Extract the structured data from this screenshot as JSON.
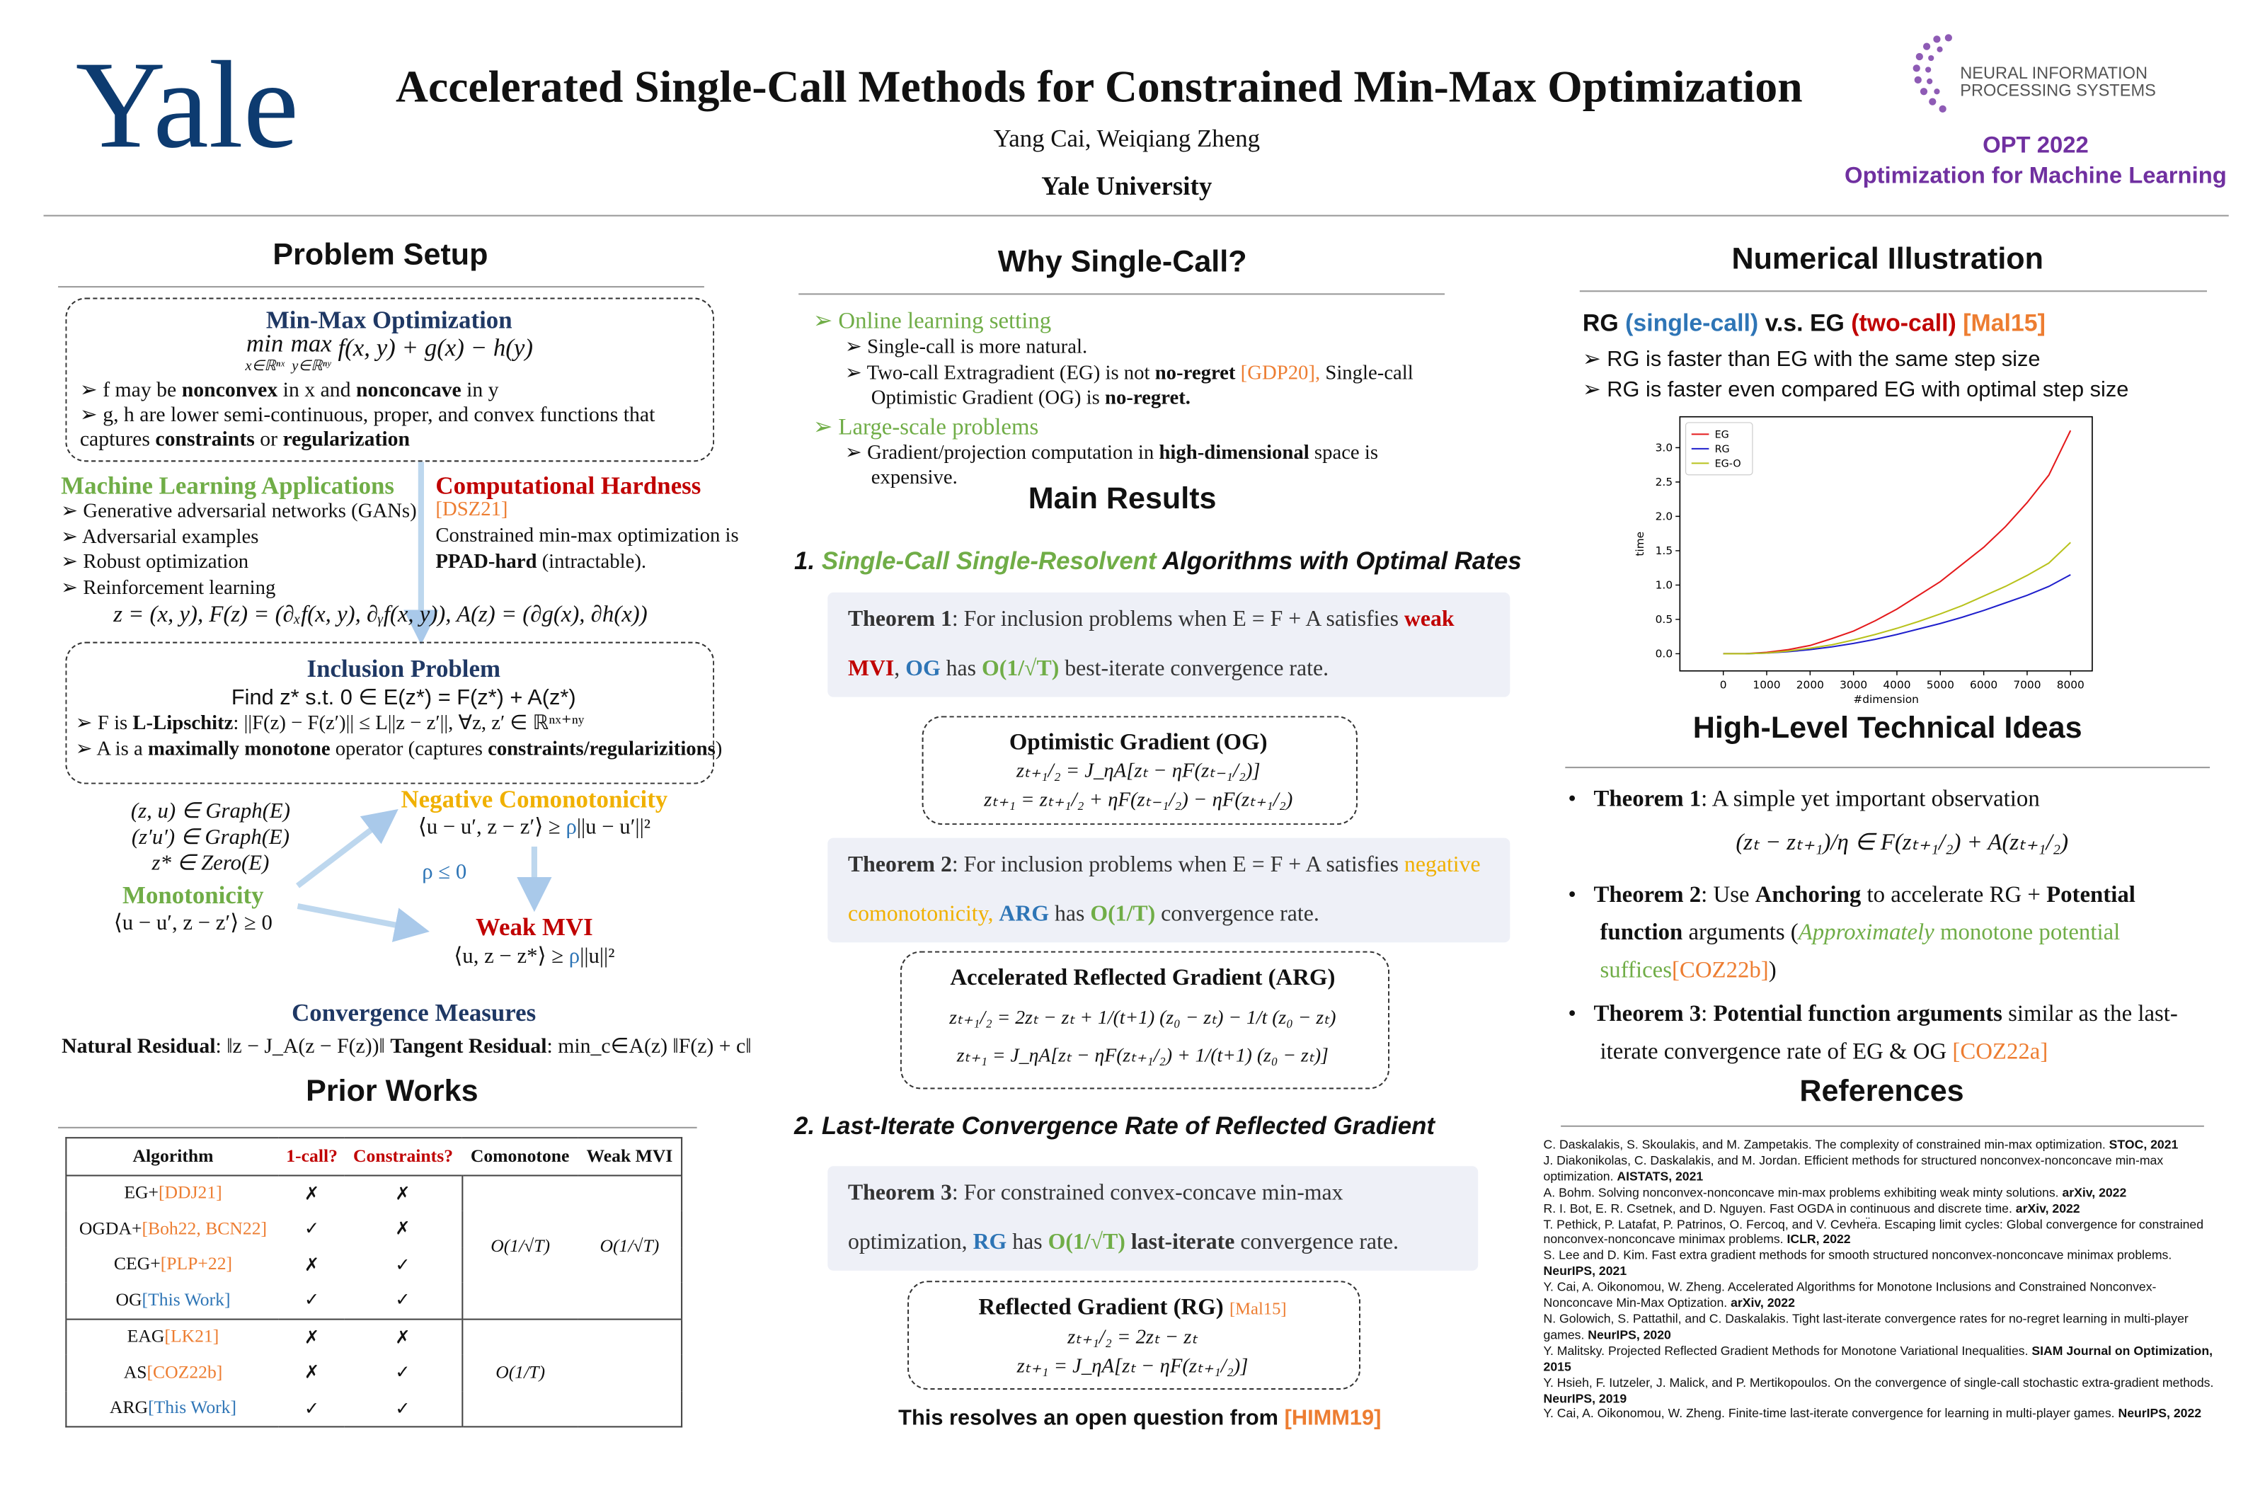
{
  "header": {
    "logo": "Yale",
    "title": "Accelerated Single-Call Methods for Constrained Min-Max Optimization",
    "authors": "Yang Cai, Weiqiang Zheng",
    "affiliation": "Yale University",
    "conference_logo": [
      "NEURAL INFORMATION",
      "PROCESSING SYSTEMS"
    ],
    "workshop": "OPT 2022",
    "workshop_name": "Optimization for Machine Learning"
  },
  "problem_setup": {
    "heading": "Problem Setup",
    "minmax": {
      "title": "Min-Max Optimization",
      "op1": "min",
      "sub1": "x∈ℝⁿˣ",
      "op2": "max",
      "sub2": "y∈ℝⁿʸ",
      "expr": "f(x, y) + g(x) − h(y)",
      "bullets": [
        [
          "f may be ",
          "nonconvex",
          " in x and ",
          "nonconcave",
          " in y"
        ],
        [
          "g, h are lower semi-continuous, proper, and convex functions that captures ",
          "constraints",
          " or ",
          "regularization"
        ]
      ]
    },
    "ml_apps": {
      "title": "Machine Learning Applications",
      "items": [
        "Generative adversarial networks (GANs)",
        "Adversarial examples",
        "Robust optimization",
        "Reinforcement learning"
      ]
    },
    "hardness": {
      "title": "Computational Hardness",
      "ref": "[DSZ21]",
      "text": [
        "Constrained min-max optimization is ",
        "PPAD-hard",
        " (intractable)."
      ]
    },
    "operator_def": "z = (x, y), F(z) = (∂ₓf(x, y), ∂ᵧf(x, y)), A(z) = (∂g(x), ∂h(x))",
    "inclusion": {
      "title": "Inclusion Problem",
      "statement": "Find z* s.t. 0 ∈ E(z*) = F(z*) + A(z*)",
      "bullets": [
        [
          "F is ",
          "L-Lipschitz",
          ": ||F(z) − F(z′)|| ≤ L||z − z′||, ∀z, z′ ∈ ℝⁿˣ⁺ⁿʸ"
        ],
        [
          "A is a ",
          "maximally monotone",
          " operator (captures ",
          "constraints/regularizitions",
          ")"
        ]
      ]
    },
    "conditions": {
      "graph": [
        "(z, u) ∈ Graph(E)",
        "(z′u′) ∈ Graph(E)",
        "z* ∈ Zero(E)"
      ],
      "monotonicity": {
        "title": "Monotonicity",
        "formula": "⟨u − u′, z − z′⟩ ≥ 0"
      },
      "negative_comonotonicity": {
        "title": "Negative Comonotonicity",
        "formula": [
          "⟨u − u′, z − z′⟩ ≥ ",
          "ρ",
          "||u − u′||²"
        ]
      },
      "rho_condition": "ρ ≤ 0",
      "weak_mvi": {
        "title": "Weak MVI",
        "formula": [
          "⟨u, z − z*⟩ ≥ ",
          "ρ",
          "||u||²"
        ]
      }
    },
    "convergence": {
      "title": "Convergence Measures",
      "text": [
        "Natural Residual",
        ": ‖z − J_A(z − F(z))‖ ",
        "Tangent Residual",
        ": min_c∈A(z) ‖F(z) + c‖"
      ]
    }
  },
  "prior_works": {
    "heading": "Prior Works",
    "table": {
      "header": [
        "Algorithm",
        "1-call?",
        "Constraints?",
        "Comonotone",
        "Weak MVI"
      ],
      "rows": [
        {
          "algorithm": "EG+",
          "ref": "[DDJ21]",
          "one_call": "✗",
          "constraints": "✗"
        },
        {
          "algorithm": "OGDA+",
          "ref": "[Boh22, BCN22]",
          "one_call": "✓",
          "constraints": "✗"
        },
        {
          "algorithm": "CEG+",
          "ref": "[PLP+22]",
          "one_call": "✗",
          "constraints": "✓"
        },
        {
          "algorithm": "OG",
          "ref": "[This Work]",
          "one_call": "✓",
          "constraints": "✓"
        },
        {
          "algorithm": "EAG",
          "ref": "[LK21]",
          "one_call": "✗",
          "constraints": "✗"
        },
        {
          "algorithm": "AS",
          "ref": "[COZ22b]",
          "one_call": "✗",
          "constraints": "✓"
        },
        {
          "algorithm": "ARG",
          "ref": "[This Work]",
          "one_call": "✓",
          "constraints": "✓"
        }
      ],
      "rates": {
        "group1_comonotone": "O(1/√T)",
        "group1_weak_mvi": "O(1/√T)",
        "group2_comonotone": "O(1/T)"
      }
    }
  },
  "why_single_call": {
    "heading": "Why Single-Call?",
    "items": [
      {
        "title": "Online learning setting",
        "sub": [
          [
            "Single-call is more natural."
          ],
          [
            "Two-call Extragradient (EG) is not ",
            "no-regret",
            " [GDP20],",
            " Single-call Optimistic Gradient (OG) is ",
            "no-regret."
          ]
        ]
      },
      {
        "title": "Large-scale problems",
        "sub": [
          [
            "Gradient/projection computation in ",
            "high-dimensional",
            " space is expensive."
          ]
        ]
      }
    ]
  },
  "main_results": {
    "heading": "Main Results",
    "section1": [
      "1. ",
      "Single-Call Single-Resolvent",
      " Algorithms with Optimal Rates"
    ],
    "theorem1": [
      "Theorem 1",
      ": For inclusion problems when E = F + A satisfies ",
      "weak MVI",
      ", ",
      "OG",
      " has ",
      "O(1/√T)",
      " best-iterate convergence rate."
    ],
    "og": {
      "title": "Optimistic Gradient (OG)",
      "eqs": [
        "zₜ₊₁/₂ = J_ηA[zₜ − ηF(zₜ₋₁/₂)]",
        "zₜ₊₁ = zₜ₊₁/₂ + ηF(zₜ₋₁/₂) − ηF(zₜ₊₁/₂)"
      ]
    },
    "theorem2": [
      "Theorem 2",
      ": For inclusion problems when E = F + A satisfies ",
      "negative comonotonicity,",
      " ",
      "ARG",
      " has ",
      "O(1/T)",
      " convergence rate."
    ],
    "arg": {
      "title": "Accelerated Reflected Gradient (ARG)",
      "eqs": [
        "zₜ₊₁/₂ = 2zₜ − zₜ + 1/(t+1) (z₀ − zₜ) − 1/t (z₀ − zₜ)",
        "zₜ₊₁ = J_ηA[zₜ − ηF(zₜ₊₁/₂) + 1/(t+1) (z₀ − zₜ)]"
      ]
    },
    "section2": "2. Last-Iterate Convergence Rate of Reflected Gradient",
    "theorem3": [
      "Theorem 3",
      ": For constrained convex-concave min-max optimization, ",
      "RG",
      " has ",
      "O(1/√T)",
      " last-iterate",
      " convergence rate."
    ],
    "rg": {
      "title": "Reflected Gradient (RG)",
      "ref": "[Mal15]",
      "eqs": [
        "zₜ₊₁/₂ = 2zₜ − zₜ",
        "zₜ₊₁ = J_ηA[zₜ − ηF(zₜ₊₁/₂)]"
      ]
    },
    "closing": [
      "This resolves an open question from ",
      "[HIMM19]"
    ]
  },
  "numerical": {
    "heading": "Numerical Illustration",
    "subtitle": [
      "RG ",
      "(single-call)",
      " v.s. EG ",
      "(two-call)",
      " ",
      "[Mal15]"
    ],
    "bullets": [
      "RG is faster than EG with the same step size",
      "RG is faster even compared EG with optimal step size"
    ]
  },
  "chart_data": {
    "type": "line",
    "xlabel": "#dimension",
    "ylabel": "time",
    "x": [
      0,
      500,
      1000,
      1500,
      2000,
      2500,
      3000,
      3500,
      4000,
      4500,
      5000,
      5500,
      6000,
      6500,
      7000,
      7500,
      8000
    ],
    "series": [
      {
        "name": "EG",
        "color": "#e41a1c",
        "values": [
          0,
          0,
          0.02,
          0.06,
          0.12,
          0.22,
          0.33,
          0.48,
          0.65,
          0.85,
          1.05,
          1.3,
          1.55,
          1.85,
          2.2,
          2.6,
          3.25
        ]
      },
      {
        "name": "RG",
        "color": "#1f1fcc",
        "values": [
          0,
          0,
          0.01,
          0.03,
          0.06,
          0.1,
          0.15,
          0.21,
          0.28,
          0.36,
          0.44,
          0.53,
          0.63,
          0.74,
          0.85,
          0.98,
          1.15
        ]
      },
      {
        "name": "EG-O",
        "color": "#b8c21c",
        "values": [
          0,
          0,
          0.01,
          0.04,
          0.08,
          0.13,
          0.2,
          0.28,
          0.37,
          0.47,
          0.58,
          0.7,
          0.84,
          0.98,
          1.14,
          1.32,
          1.62
        ]
      }
    ],
    "xlim": [
      -1000,
      8500
    ],
    "ylim": [
      -0.25,
      3.45
    ],
    "xticks": [
      0,
      1000,
      2000,
      3000,
      4000,
      5000,
      6000,
      7000,
      8000
    ],
    "yticks": [
      {
        "value": 0,
        "label": "0.0"
      },
      0.5,
      {
        "value": 1,
        "label": "1.0"
      },
      1.5,
      {
        "value": 2,
        "label": "2.0"
      },
      2.5,
      {
        "value": 3,
        "label": "3.0"
      }
    ],
    "legend": "upper left",
    "grid": false
  },
  "ideas": {
    "heading": "High-Level Technical Ideas",
    "item1": [
      "Theorem 1",
      ": A simple yet important observation"
    ],
    "formula": "(zₜ − zₜ₊₁)/η ∈ F(zₜ₊₁/₂) + A(zₜ₊₁/₂)",
    "item2": [
      "Theorem 2",
      ": Use ",
      "Anchoring",
      " to accelerate RG + ",
      "Potential function",
      " arguments (",
      "Approximately",
      " monotone potential suffices",
      "[COZ22b]",
      ")"
    ],
    "item3": [
      "Theorem 3",
      ": ",
      "Potential function arguments",
      " similar as the last-iterate convergence rate of EG & OG ",
      "[COZ22a]"
    ]
  },
  "references": {
    "heading": "References",
    "items": [
      [
        "C. Daskalakis, S. Skoulakis, and M. Zampetakis. The complexity of constrained min-max optimization. ",
        "STOC, 2021"
      ],
      [
        "J. Diakonikolas, C. Daskalakis, and M. Jordan. Efficient methods for structured nonconvex-nonconcave min-max optimization. ",
        "AISTATS, 2021"
      ],
      [
        "A. Bohm. Solving nonconvex-nonconcave min-max problems exhibiting weak minty solutions. ",
        "arXiv, 2022"
      ],
      [
        "R. I. Bot, E. R. Csetnek, and D. Nguyen. Fast OGDA in continuous and discrete time. ",
        "arXiv, 2022"
      ],
      [
        "T. Pethick, P. Latafat, P. Patrinos, O. Fercoq, and V. Cevher̈a. Escaping limit cycles: Global convergence for constrained nonconvex-nonconcave minimax problems. ",
        "ICLR, 2022"
      ],
      [
        "S. Lee and D. Kim. Fast extra gradient methods for smooth structured nonconvex-nonconcave minimax problems. ",
        "NeurIPS, 2021"
      ],
      [
        "Y. Cai, A. Oikonomou, W. Zheng. Accelerated Algorithms for Monotone Inclusions and Constrained Nonconvex-Nonconcave Min-Max Optization. ",
        "arXiv, 2022"
      ],
      [
        "N. Golowich, S. Pattathil, and C. Daskalakis. Tight last-iterate convergence rates for no-regret learning in multi-player games. ",
        "NeurIPS, 2020"
      ],
      [
        "Y. Malitsky. Projected Reflected Gradient Methods for Monotone Variational Inequalities. ",
        "SIAM Journal on Optimization, 2015"
      ],
      [
        "Y. Hsieh, F. Iutzeler, J. Malick, and P. Mertikopoulos. On the convergence of single-call stochastic extra-gradient methods. ",
        "NeurIPS, 2019"
      ],
      [
        "Y. Cai, A. Oikonomou, W. Zheng. Finite-time last-iterate convergence for learning in multi-player games. ",
        "NeurIPS, 2022"
      ]
    ]
  }
}
